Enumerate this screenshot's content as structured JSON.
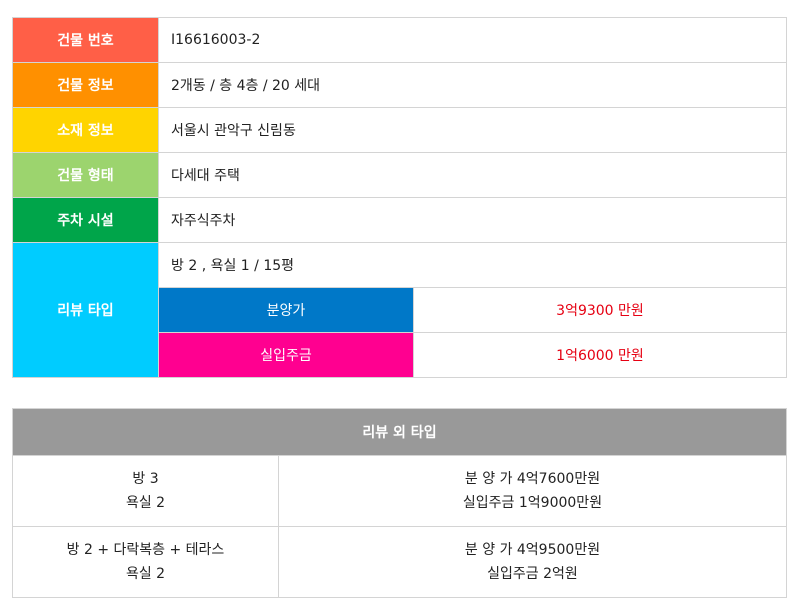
{
  "info": [
    {
      "label": "건물 번호",
      "value": "I16616003-2",
      "color": "#ff5f47"
    },
    {
      "label": "건물 정보",
      "value": "2개동 / 층 4층 / 20 세대",
      "color": "#ff9000"
    },
    {
      "label": "소재 정보",
      "value": "서울시 관악구 신림동",
      "color": "#ffd400"
    },
    {
      "label": "건물 형태",
      "value": "다세대 주택",
      "color": "#9cd46e"
    },
    {
      "label": "주차 시설",
      "value": "자주식주차",
      "color": "#00a54a"
    }
  ],
  "review": {
    "label": "리뷰 타입",
    "color": "#00ccff",
    "summary": "방 2 , 욕실 1 / 15평",
    "sale_label": "분양가",
    "sale_color": "#0078c8",
    "sale_value": "3억9300 만원",
    "deposit_label": "실입주금",
    "deposit_color": "#ff0090",
    "deposit_value": "1억6000 만원"
  },
  "other": {
    "title": "리뷰 외 타입",
    "rows": [
      {
        "rooms": "방 3",
        "baths": "욕실 2",
        "sale": "분 양 가 4억7600만원",
        "deposit": "실입주금 1억9000만원"
      },
      {
        "rooms": "방 2 + 다락복층 + 테라스",
        "baths": "욕실 2",
        "sale": "분 양 가 4억9500만원",
        "deposit": "실입주금 2억원"
      }
    ]
  }
}
